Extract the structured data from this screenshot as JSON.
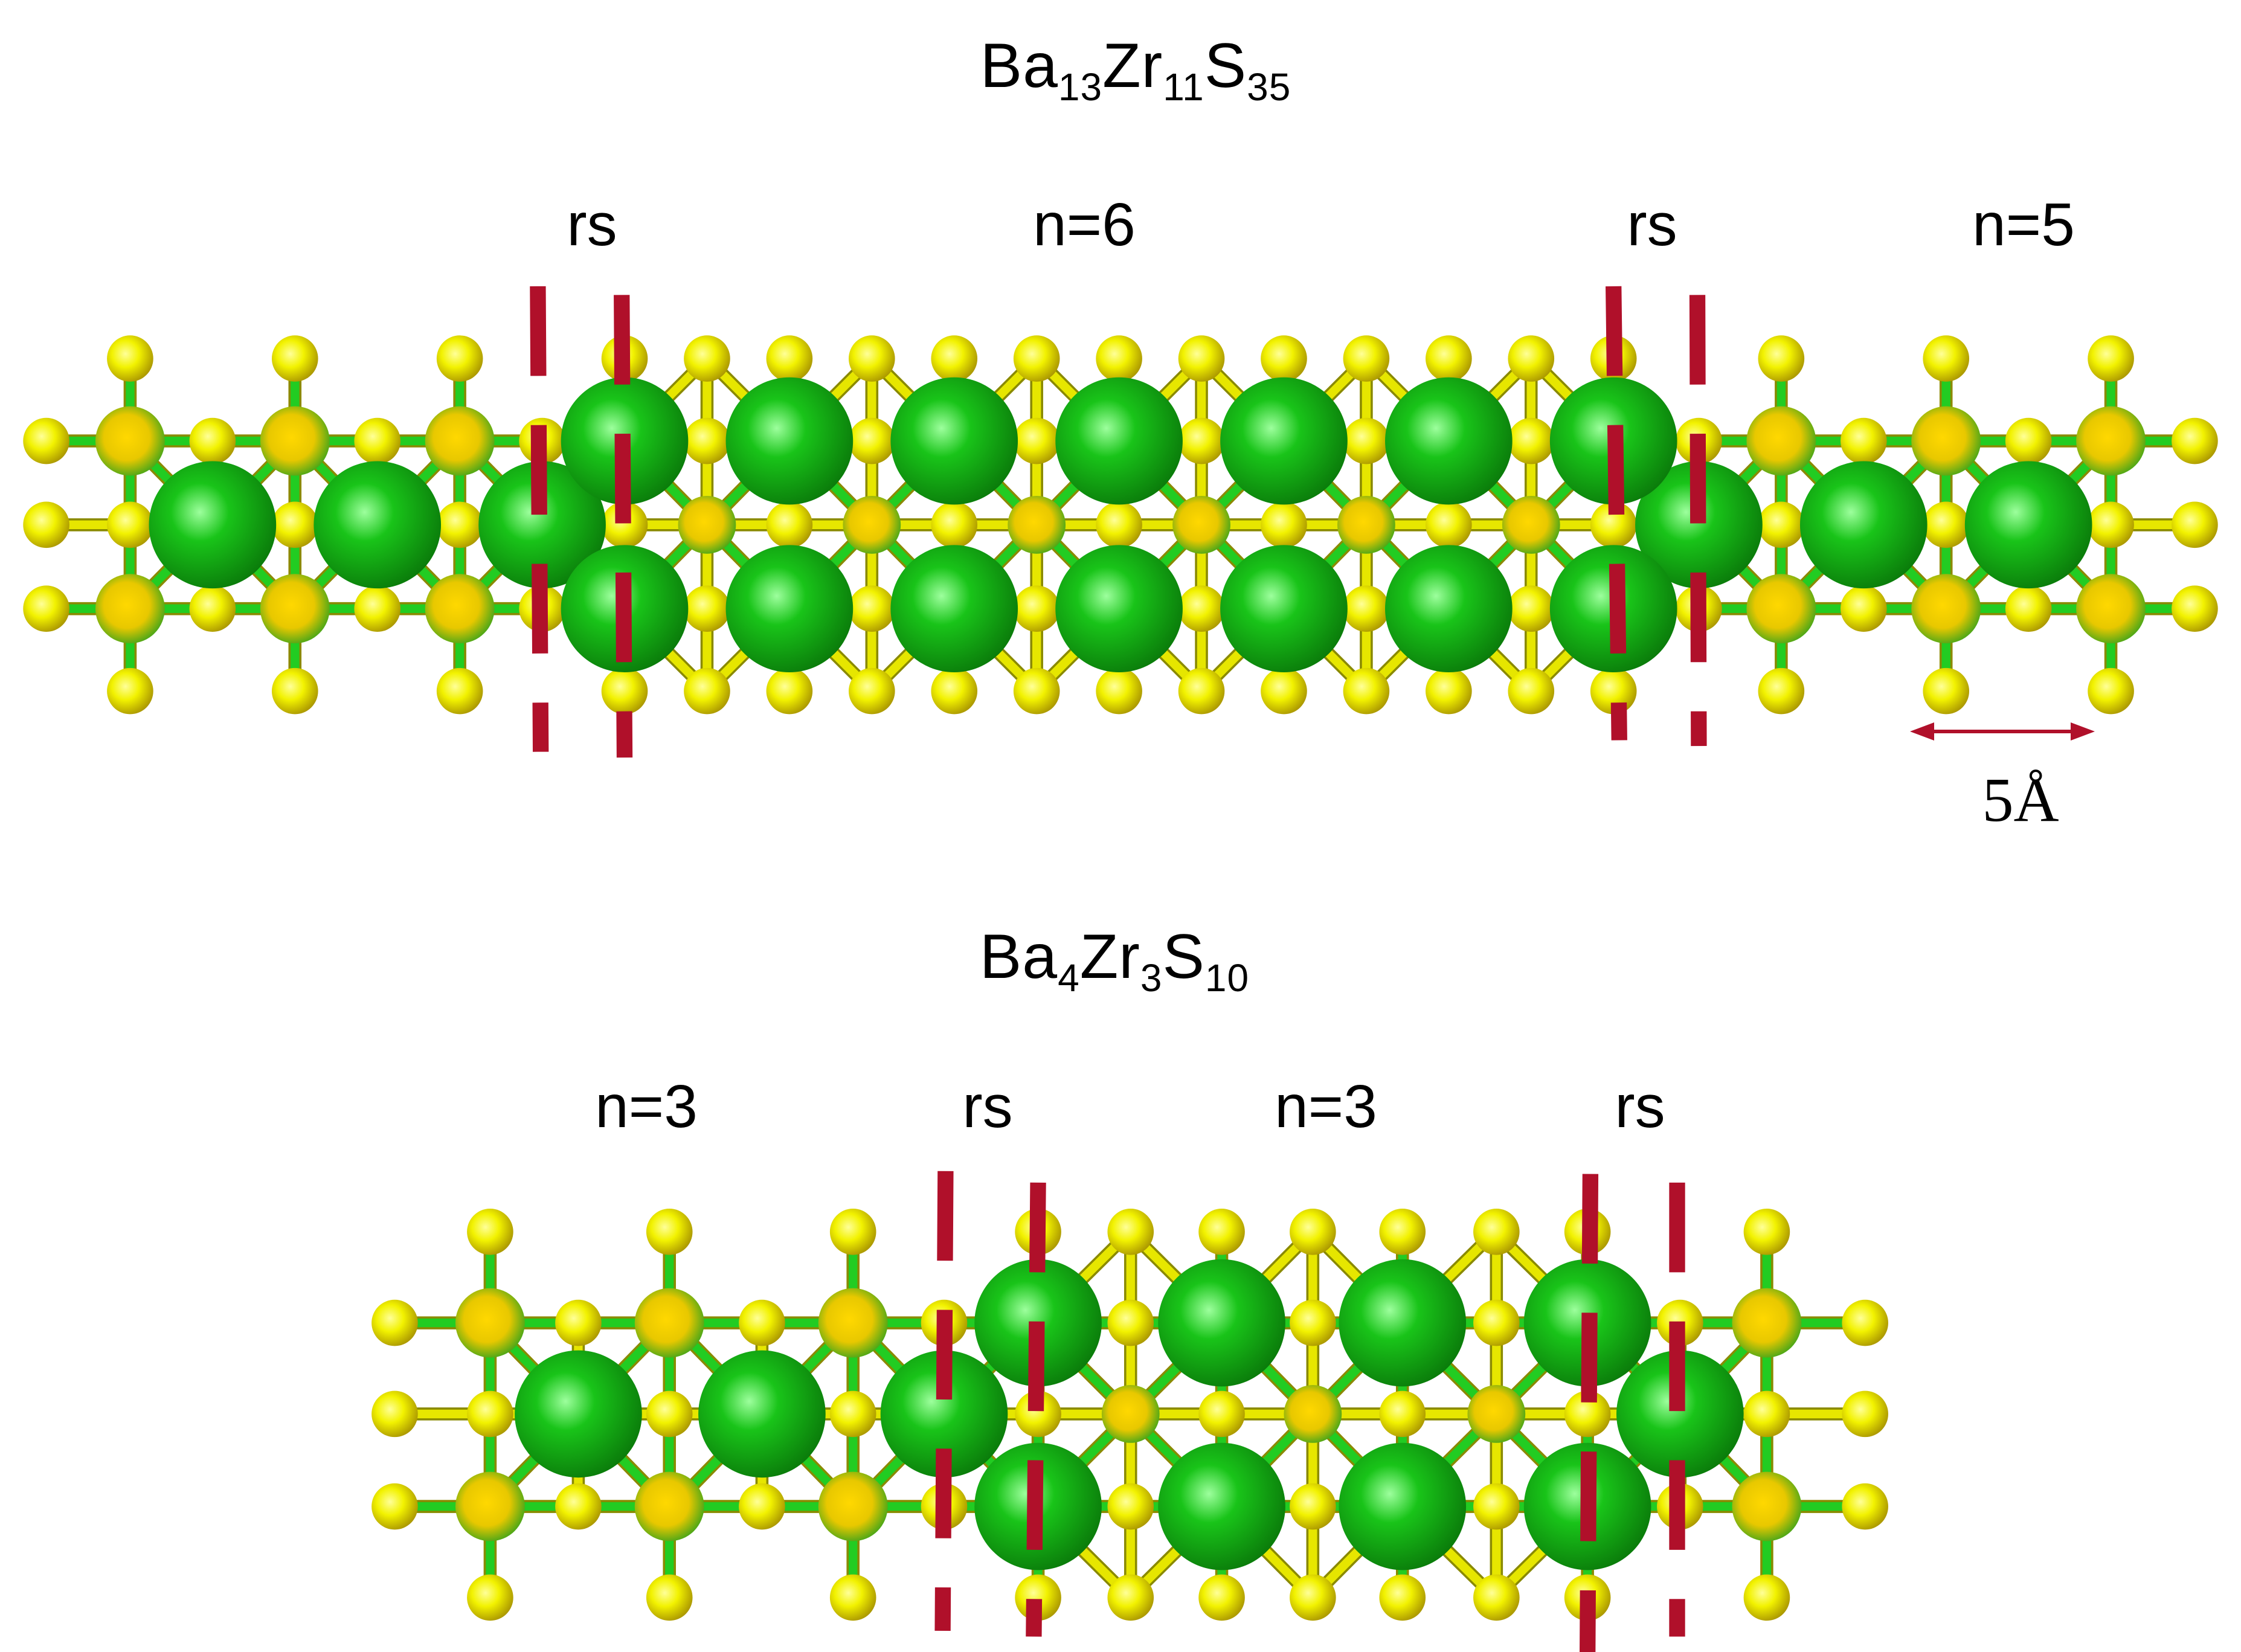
{
  "panels": [
    {
      "formula": {
        "el1": "Ba",
        "sub1": "13",
        "el2": "Zr",
        "sub2": "11",
        "el3": "S",
        "sub3": "35"
      },
      "regions": [
        "rs",
        "n=6",
        "rs",
        "n=5"
      ]
    },
    {
      "formula": {
        "el1": "Ba",
        "sub1": "4",
        "el2": "Zr",
        "sub2": "3",
        "el3": "S",
        "sub3": "10"
      },
      "regions": [
        "n=3",
        "rs",
        "n=3",
        "rs"
      ]
    }
  ],
  "scale_bar": {
    "label": "5Å"
  },
  "colors": {
    "zr_atom": "#19c419",
    "zr_atom_dark": "#0a8a0a",
    "s_atom": "#f2f200",
    "s_atom_dark": "#b3a200",
    "bond_green": "#22cc22",
    "bond_yellow": "#e6e600",
    "boundary_line": "#b0102a",
    "arrow": "#b0102a"
  }
}
